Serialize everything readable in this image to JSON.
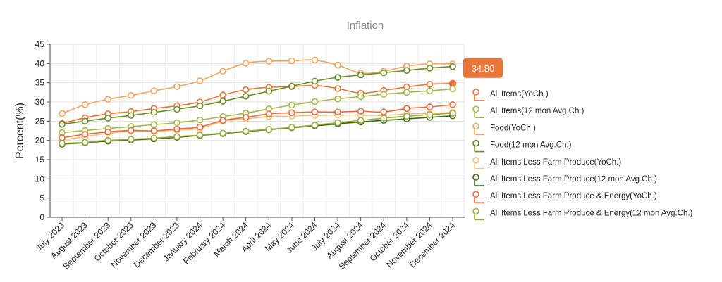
{
  "chart_data": {
    "type": "line",
    "title": "Inflation",
    "xlabel": "",
    "ylabel": "Percent(%)",
    "ylim": [
      0,
      45
    ],
    "yticks": [
      0,
      5,
      10,
      15,
      20,
      25,
      30,
      35,
      40,
      45
    ],
    "grid": true,
    "legend_position": "right",
    "categories": [
      "July 2023",
      "August 2023",
      "September 2023",
      "October 2023",
      "November 2023",
      "December 2023",
      "January 2024",
      "February 2024",
      "March 2024",
      "April 2024",
      "May 2024",
      "June 2024",
      "July 2024",
      "August 2024",
      "September 2024",
      "October 2024",
      "November 2024",
      "December 2024"
    ],
    "series": [
      {
        "name": "All Items(YoCh.)",
        "color": "#e8753a",
        "values": [
          24.4,
          25.9,
          26.9,
          27.5,
          28.3,
          29.0,
          30.0,
          31.8,
          33.2,
          33.8,
          34.0,
          34.3,
          33.5,
          32.3,
          33.0,
          33.9,
          34.6,
          34.8
        ]
      },
      {
        "name": "All Items(12 mon Avg.Ch.)",
        "color": "#a8b848",
        "values": [
          22.0,
          22.6,
          23.1,
          23.6,
          24.1,
          24.6,
          25.3,
          26.2,
          27.1,
          28.2,
          29.2,
          30.1,
          30.8,
          31.4,
          32.0,
          32.5,
          32.9,
          33.4
        ]
      },
      {
        "name": "Food(YoCh.)",
        "color": "#f4a460",
        "values": [
          27.0,
          29.3,
          30.7,
          31.7,
          32.9,
          34.0,
          35.5,
          38.0,
          40.1,
          40.6,
          40.7,
          40.9,
          39.6,
          37.5,
          38.0,
          39.3,
          39.9,
          39.9
        ]
      },
      {
        "name": "Food(12 mon Avg.Ch.)",
        "color": "#6b8e23",
        "values": [
          24.2,
          25.0,
          25.8,
          26.5,
          27.3,
          28.1,
          29.0,
          30.2,
          31.5,
          32.8,
          34.1,
          35.4,
          36.4,
          37.0,
          37.6,
          38.2,
          38.8,
          39.2
        ]
      },
      {
        "name": "All Items Less Farm Produce(YoCh.)",
        "color": "#f6c27a",
        "values": [
          20.0,
          21.0,
          21.8,
          22.4,
          22.4,
          22.7,
          23.1,
          25.0,
          25.6,
          26.2,
          26.3,
          26.5,
          26.6,
          26.6,
          26.5,
          26.9,
          27.0,
          27.3
        ]
      },
      {
        "name": "All Items Less Farm Produce(12 mon Avg.Ch.)",
        "color": "#3d6b14",
        "values": [
          19.0,
          19.4,
          19.8,
          20.1,
          20.4,
          20.8,
          21.3,
          21.8,
          22.3,
          22.8,
          23.3,
          23.8,
          24.3,
          24.8,
          25.2,
          25.6,
          26.0,
          26.4
        ]
      },
      {
        "name": "All Items Less Farm Produce & Energy(YoCh.)",
        "color": "#ec6a3c",
        "values": [
          20.7,
          21.6,
          22.2,
          22.6,
          22.5,
          23.0,
          23.5,
          25.2,
          26.0,
          26.9,
          27.2,
          27.4,
          27.4,
          27.6,
          27.4,
          28.3,
          28.7,
          29.3
        ]
      },
      {
        "name": "All Items Less Farm Produce & Energy(12 mon Avg.Ch.)",
        "color": "#9aaa3c",
        "values": [
          19.2,
          19.5,
          20.0,
          20.3,
          20.6,
          21.0,
          21.4,
          21.9,
          22.4,
          22.9,
          23.4,
          24.0,
          24.6,
          25.2,
          25.8,
          26.3,
          26.7,
          27.1
        ]
      }
    ],
    "tooltip": {
      "label": "34.80",
      "series_index": 0,
      "category_index": 17,
      "color": "#e8753a"
    }
  }
}
